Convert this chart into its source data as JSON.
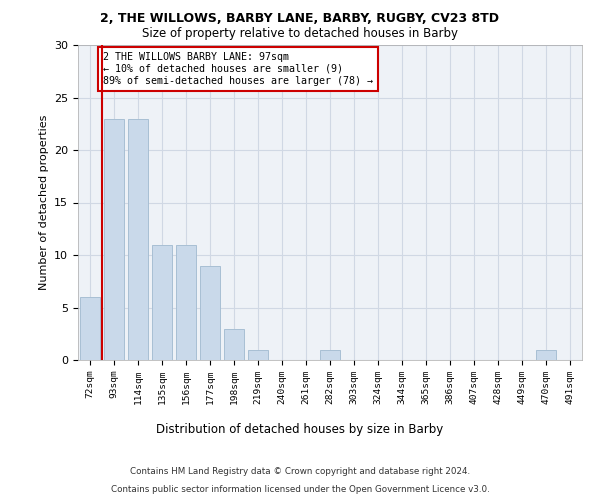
{
  "title1": "2, THE WILLOWS, BARBY LANE, BARBY, RUGBY, CV23 8TD",
  "title2": "Size of property relative to detached houses in Barby",
  "xlabel": "Distribution of detached houses by size in Barby",
  "ylabel": "Number of detached properties",
  "bar_color": "#c9d9ea",
  "bar_edgecolor": "#a8bfd4",
  "categories": [
    "72sqm",
    "93sqm",
    "114sqm",
    "135sqm",
    "156sqm",
    "177sqm",
    "198sqm",
    "219sqm",
    "240sqm",
    "261sqm",
    "282sqm",
    "303sqm",
    "324sqm",
    "344sqm",
    "365sqm",
    "386sqm",
    "407sqm",
    "428sqm",
    "449sqm",
    "470sqm",
    "491sqm"
  ],
  "values": [
    6,
    23,
    23,
    11,
    11,
    9,
    3,
    1,
    0,
    0,
    1,
    0,
    0,
    0,
    0,
    0,
    0,
    0,
    0,
    1,
    0
  ],
  "ylim": [
    0,
    30
  ],
  "yticks": [
    0,
    5,
    10,
    15,
    20,
    25,
    30
  ],
  "annotation_line1": "2 THE WILLOWS BARBY LANE: 97sqm",
  "annotation_line2": "← 10% of detached houses are smaller (9)",
  "annotation_line3": "89% of semi-detached houses are larger (78) →",
  "footer1": "Contains HM Land Registry data © Crown copyright and database right 2024.",
  "footer2": "Contains public sector information licensed under the Open Government Licence v3.0.",
  "annotation_box_facecolor": "#ffffff",
  "annotation_box_edgecolor": "#cc0000",
  "vline_color": "#cc0000",
  "grid_color": "#d0d8e4",
  "bg_color": "#eef2f7"
}
